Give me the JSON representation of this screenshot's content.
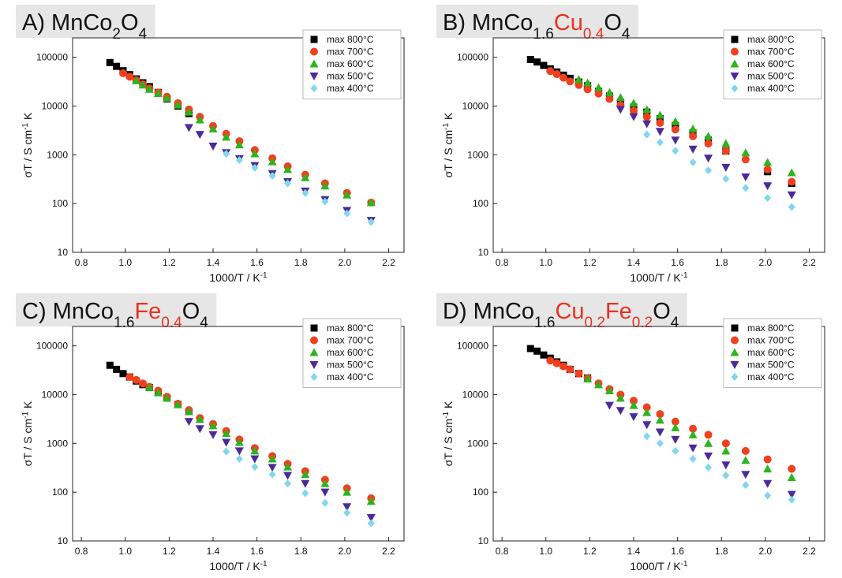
{
  "chart_data": [
    {
      "type": "scatter",
      "title_parts": [
        {
          "text": "A) MnCo"
        },
        {
          "text": "2",
          "sub": true
        },
        {
          "text": "O"
        },
        {
          "text": "4",
          "sub": true
        }
      ],
      "xlabel_parts": [
        {
          "text": "1000/T / K"
        },
        {
          "text": "-1",
          "sup": true
        }
      ],
      "ylabel_parts": [
        {
          "text": "σT / S cm"
        },
        {
          "text": "-1",
          "sup": true
        },
        {
          "text": " K"
        }
      ],
      "x": [
        0.93,
        0.96,
        0.99,
        1.02,
        1.05,
        1.08,
        1.11,
        1.15,
        1.19,
        1.24,
        1.29,
        1.34,
        1.4,
        1.46,
        1.52,
        1.59,
        1.67,
        1.74,
        1.82,
        1.91,
        2.01,
        2.12
      ],
      "xlim": [
        0.76,
        2.27
      ],
      "xticks": [
        0.8,
        {
          "value": 1,
          "label": "1.0"
        },
        1.2,
        1.4,
        1.6,
        1.8,
        {
          "value": 2,
          "label": "2.0"
        },
        2.2
      ],
      "ylim": [
        10,
        250000
      ],
      "yticks": [
        10,
        100,
        1000,
        10000,
        100000
      ],
      "ylog": true,
      "legend": "upper right",
      "series": [
        {
          "name": "max 800°C",
          "color": "#000000",
          "marker": "square",
          "values": [
            78000,
            65000,
            53000,
            44000,
            36000,
            30000,
            25000,
            19000,
            14000,
            10000,
            7000,
            null,
            null,
            null,
            null,
            null,
            null,
            null,
            null,
            null,
            null,
            null
          ]
        },
        {
          "name": "max 700°C",
          "color": "#f0401e",
          "marker": "circle",
          "values": [
            null,
            null,
            47000,
            40000,
            34000,
            28000,
            23000,
            19000,
            15500,
            11500,
            8500,
            6000,
            3900,
            2700,
            1900,
            1250,
            850,
            580,
            390,
            260,
            165,
            105
          ]
        },
        {
          "name": "max 600°C",
          "color": "#2db41c",
          "marker": "triangle-up",
          "values": [
            null,
            null,
            null,
            null,
            33000,
            27000,
            22000,
            18000,
            14500,
            10500,
            7500,
            5200,
            3400,
            2300,
            1600,
            1050,
            720,
            500,
            340,
            230,
            150,
            105
          ]
        },
        {
          "name": "max 500°C",
          "color": "#4a2a9a",
          "marker": "triangle-down",
          "values": [
            null,
            null,
            null,
            null,
            null,
            null,
            null,
            null,
            null,
            null,
            3600,
            2600,
            1500,
            1100,
            830,
            600,
            410,
            280,
            180,
            120,
            72,
            45
          ]
        },
        {
          "name": "max 400°C",
          "color": "#80d8ea",
          "marker": "diamond",
          "values": [
            null,
            null,
            null,
            null,
            null,
            null,
            null,
            null,
            null,
            null,
            null,
            null,
            null,
            1050,
            780,
            540,
            370,
            260,
            165,
            110,
            63,
            42
          ]
        }
      ]
    },
    {
      "type": "scatter",
      "title_parts": [
        {
          "text": "B) MnCo"
        },
        {
          "text": "1.6",
          "sub": true
        },
        {
          "text": "Cu",
          "color": "#e8321e"
        },
        {
          "text": "0.4",
          "sub": true,
          "color": "#e8321e"
        },
        {
          "text": "O"
        },
        {
          "text": "4",
          "sub": true
        }
      ],
      "xlabel_parts": [
        {
          "text": "1000/T / K"
        },
        {
          "text": "-1",
          "sup": true
        }
      ],
      "ylabel_parts": [
        {
          "text": "σT / S cm"
        },
        {
          "text": "-1",
          "sup": true
        },
        {
          "text": " K"
        }
      ],
      "x": [
        0.93,
        0.96,
        0.99,
        1.02,
        1.05,
        1.08,
        1.11,
        1.15,
        1.19,
        1.24,
        1.29,
        1.34,
        1.4,
        1.46,
        1.52,
        1.59,
        1.67,
        1.74,
        1.82,
        1.91,
        2.01,
        2.12
      ],
      "xlim": [
        0.76,
        2.27
      ],
      "xticks": [
        0.8,
        {
          "value": 1,
          "label": "1.0"
        },
        1.2,
        1.4,
        1.6,
        1.8,
        {
          "value": 2,
          "label": "2.0"
        },
        2.2
      ],
      "ylim": [
        10,
        250000
      ],
      "yticks": [
        10,
        100,
        1000,
        10000,
        100000
      ],
      "ylog": true,
      "legend": "upper right",
      "series": [
        {
          "name": "max 800°C",
          "color": "#000000",
          "marker": "square",
          "values": [
            90000,
            80000,
            68000,
            58000,
            50000,
            43000,
            37000,
            31000,
            26000,
            20000,
            16000,
            12000,
            9500,
            7500,
            5500,
            4000,
            2800,
            2000,
            1200,
            null,
            450,
            260
          ]
        },
        {
          "name": "max 700°C",
          "color": "#f0401e",
          "marker": "circle",
          "values": [
            null,
            null,
            null,
            52000,
            45000,
            38000,
            32000,
            27000,
            22000,
            18000,
            14000,
            10500,
            8000,
            6000,
            4500,
            3300,
            2400,
            1700,
            1200,
            800,
            500,
            280
          ]
        },
        {
          "name": "max 600°C",
          "color": "#2db41c",
          "marker": "triangle-up",
          "values": [
            null,
            null,
            null,
            null,
            null,
            null,
            null,
            35000,
            30000,
            24000,
            19000,
            15000,
            11500,
            8500,
            6500,
            4800,
            3400,
            2400,
            1700,
            1100,
            700,
            430
          ]
        },
        {
          "name": "max 500°C",
          "color": "#4a2a9a",
          "marker": "triangle-down",
          "values": [
            null,
            null,
            null,
            null,
            null,
            null,
            null,
            null,
            null,
            null,
            null,
            8500,
            6000,
            4300,
            3000,
            2000,
            1300,
            850,
            550,
            350,
            230,
            150
          ]
        },
        {
          "name": "max 400°C",
          "color": "#80d8ea",
          "marker": "diamond",
          "values": [
            null,
            null,
            null,
            null,
            null,
            null,
            null,
            null,
            null,
            null,
            null,
            null,
            null,
            2600,
            1800,
            1200,
            700,
            480,
            320,
            210,
            130,
            85
          ]
        }
      ]
    },
    {
      "type": "scatter",
      "title_parts": [
        {
          "text": "C) MnCo"
        },
        {
          "text": "1.6",
          "sub": true
        },
        {
          "text": "Fe",
          "color": "#e8321e"
        },
        {
          "text": "0.4",
          "sub": true,
          "color": "#e8321e"
        },
        {
          "text": "O"
        },
        {
          "text": "4",
          "sub": true
        }
      ],
      "xlabel_parts": [
        {
          "text": "1000/T / K"
        },
        {
          "text": "-1",
          "sup": true
        }
      ],
      "ylabel_parts": [
        {
          "text": "σT / S cm"
        },
        {
          "text": "-1",
          "sup": true
        },
        {
          "text": " K"
        }
      ],
      "x": [
        0.93,
        0.96,
        0.99,
        1.02,
        1.05,
        1.08,
        1.11,
        1.15,
        1.19,
        1.24,
        1.29,
        1.34,
        1.4,
        1.46,
        1.52,
        1.59,
        1.67,
        1.74,
        1.82,
        1.91,
        2.01,
        2.12
      ],
      "xlim": [
        0.76,
        2.27
      ],
      "xticks": [
        0.8,
        {
          "value": 1,
          "label": "1.0"
        },
        1.2,
        1.4,
        1.6,
        1.8,
        {
          "value": 2,
          "label": "2.0"
        },
        2.2
      ],
      "ylim": [
        10,
        250000
      ],
      "yticks": [
        10,
        100,
        1000,
        10000,
        100000
      ],
      "ylog": true,
      "legend": "upper right",
      "series": [
        {
          "name": "max 800°C",
          "color": "#000000",
          "marker": "square",
          "values": [
            40000,
            33000,
            27000,
            23000,
            19000,
            16000,
            14000,
            11000,
            8500,
            6300,
            4500,
            null,
            null,
            null,
            null,
            null,
            null,
            null,
            null,
            null,
            null,
            null
          ]
        },
        {
          "name": "max 700°C",
          "color": "#f0401e",
          "marker": "circle",
          "values": [
            null,
            null,
            null,
            23000,
            20000,
            17000,
            14500,
            12000,
            9000,
            6500,
            4800,
            3300,
            2500,
            1800,
            1200,
            800,
            550,
            380,
            270,
            180,
            120,
            75
          ]
        },
        {
          "name": "max 600°C",
          "color": "#2db41c",
          "marker": "triangle-up",
          "values": [
            null,
            null,
            null,
            null,
            null,
            null,
            14000,
            11000,
            8500,
            6200,
            4500,
            3100,
            2300,
            1600,
            1050,
            700,
            480,
            330,
            230,
            150,
            100,
            65
          ]
        },
        {
          "name": "max 500°C",
          "color": "#4a2a9a",
          "marker": "triangle-down",
          "values": [
            null,
            null,
            null,
            null,
            null,
            null,
            null,
            null,
            null,
            null,
            2800,
            2000,
            1500,
            1050,
            700,
            480,
            320,
            220,
            150,
            100,
            50,
            30
          ]
        },
        {
          "name": "max 400°C",
          "color": "#80d8ea",
          "marker": "diamond",
          "values": [
            null,
            null,
            null,
            null,
            null,
            null,
            null,
            null,
            null,
            null,
            null,
            null,
            null,
            680,
            480,
            330,
            230,
            150,
            95,
            60,
            38,
            23
          ]
        }
      ]
    },
    {
      "type": "scatter",
      "title_parts": [
        {
          "text": "D) MnCo"
        },
        {
          "text": "1.6",
          "sub": true
        },
        {
          "text": "Cu",
          "color": "#e8321e"
        },
        {
          "text": "0.2",
          "sub": true,
          "color": "#e8321e"
        },
        {
          "text": "Fe",
          "color": "#e8321e"
        },
        {
          "text": "0.2",
          "sub": true,
          "color": "#e8321e"
        },
        {
          "text": "O"
        },
        {
          "text": "4",
          "sub": true
        }
      ],
      "xlabel_parts": [
        {
          "text": "1000/T / K"
        },
        {
          "text": "-1",
          "sup": true
        }
      ],
      "ylabel_parts": [
        {
          "text": "σT / S cm"
        },
        {
          "text": "-1",
          "sup": true
        },
        {
          "text": " K"
        }
      ],
      "x": [
        0.93,
        0.96,
        0.99,
        1.02,
        1.05,
        1.08,
        1.11,
        1.15,
        1.19,
        1.24,
        1.29,
        1.34,
        1.4,
        1.46,
        1.52,
        1.59,
        1.67,
        1.74,
        1.82,
        1.91,
        2.01,
        2.12
      ],
      "xlim": [
        0.76,
        2.27
      ],
      "xticks": [
        0.8,
        {
          "value": 1,
          "label": "1.0"
        },
        1.2,
        1.4,
        1.6,
        1.8,
        {
          "value": 2,
          "label": "2.0"
        },
        2.2
      ],
      "ylim": [
        10,
        250000
      ],
      "yticks": [
        10,
        100,
        1000,
        10000,
        100000
      ],
      "ylog": true,
      "legend": "upper right",
      "series": [
        {
          "name": "max 800°C",
          "color": "#000000",
          "marker": "square",
          "values": [
            88000,
            78000,
            65000,
            56000,
            47000,
            40000,
            33000,
            27000,
            22000,
            null,
            null,
            null,
            null,
            null,
            null,
            null,
            null,
            null,
            null,
            null,
            null,
            null
          ]
        },
        {
          "name": "max 700°C",
          "color": "#f0401e",
          "marker": "circle",
          "values": [
            null,
            null,
            null,
            50000,
            44000,
            38000,
            33000,
            27000,
            22000,
            17000,
            13000,
            10000,
            7500,
            5500,
            4000,
            2800,
            2000,
            1500,
            1000,
            700,
            470,
            300
          ]
        },
        {
          "name": "max 600°C",
          "color": "#2db41c",
          "marker": "triangle-up",
          "values": [
            null,
            null,
            null,
            null,
            null,
            null,
            null,
            null,
            21000,
            16000,
            12000,
            8500,
            6000,
            4300,
            3000,
            2100,
            1500,
            1000,
            700,
            450,
            300,
            200
          ]
        },
        {
          "name": "max 500°C",
          "color": "#4a2a9a",
          "marker": "triangle-down",
          "values": [
            null,
            null,
            null,
            null,
            null,
            null,
            null,
            null,
            null,
            null,
            6000,
            4700,
            3500,
            2400,
            1700,
            1200,
            800,
            550,
            360,
            230,
            150,
            90
          ]
        },
        {
          "name": "max 400°C",
          "color": "#80d8ea",
          "marker": "diamond",
          "values": [
            null,
            null,
            null,
            null,
            null,
            null,
            null,
            null,
            null,
            null,
            null,
            null,
            null,
            1400,
            1000,
            700,
            480,
            320,
            220,
            140,
            85,
            70
          ]
        }
      ]
    }
  ]
}
